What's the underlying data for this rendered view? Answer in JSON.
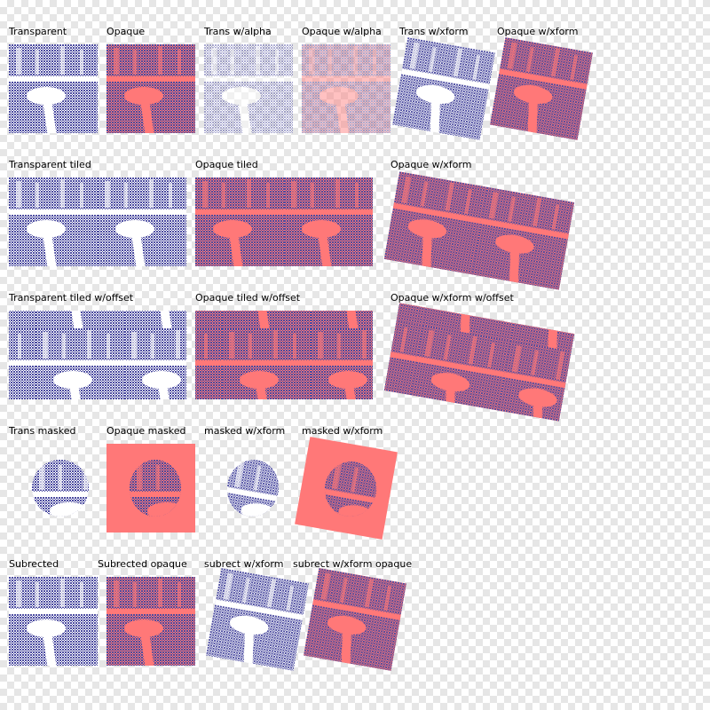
{
  "colors": {
    "ink": "#4b4ba0",
    "paper": "#ffffff",
    "key": "#ff7878"
  },
  "labels": {
    "transparent": "Transparent",
    "opaque": "Opaque",
    "trans_alpha": "Trans w/alpha",
    "opaque_alpha": "Opaque w/alpha",
    "trans_xform": "Trans w/xform",
    "opaque_xform": "Opaque w/xform",
    "trans_tiled": "Transparent tiled",
    "opaque_tiled": "Opaque tiled",
    "opaque_tiled_xform": "Opaque w/xform",
    "trans_tiled_offset": "Transparent tiled w/offset",
    "opaque_tiled_offset": "Opaque tiled w/offset",
    "opaque_xform_offset": "Opaque w/xform w/offset",
    "trans_masked": "Trans masked",
    "opaque_masked": "Opaque masked",
    "masked_xform": "masked w/xform",
    "masked_xform_2": "masked w/xform",
    "subrected": "Subrected",
    "subrected_opaque": "Subrected opaque",
    "subrect_xform": "subrect w/xform",
    "subrect_xform_opaque": "subrect w/xform opaque"
  }
}
